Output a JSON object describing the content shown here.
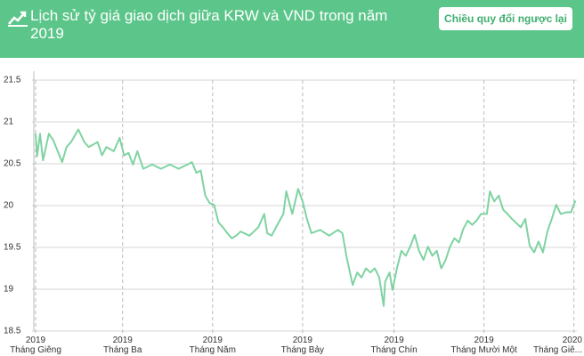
{
  "header": {
    "title": "Lịch sử tỷ giá giao dịch giữa KRW và VND trong năm 2019",
    "button": "Chiều quy đổi ngược lại"
  },
  "chart_data": {
    "type": "line",
    "color": "#7fd3a2",
    "grid": true,
    "x": [
      0,
      1,
      3,
      5,
      9,
      12,
      18,
      21,
      24,
      29,
      33,
      36,
      42,
      45,
      48,
      53,
      57,
      60,
      63,
      66,
      69,
      73,
      79,
      85,
      91,
      97,
      103,
      106,
      109,
      112,
      115,
      118,
      121,
      124,
      127,
      130,
      133,
      136,
      139,
      145,
      151,
      155,
      157,
      160,
      163,
      168,
      170,
      174,
      178,
      181,
      184,
      187,
      193,
      199,
      205,
      208,
      211,
      215,
      218,
      221,
      224,
      227,
      230,
      233,
      236,
      237,
      240,
      242,
      245,
      248,
      251,
      254,
      257,
      260,
      263,
      266,
      269,
      272,
      275,
      278,
      281,
      284,
      287,
      290,
      293,
      296,
      299,
      302,
      306,
      308,
      311,
      314,
      317,
      320,
      323,
      326,
      329,
      332,
      335,
      338,
      341,
      344,
      347,
      350,
      353,
      356,
      360,
      363,
      366
    ],
    "values": [
      20.86,
      20.59,
      20.86,
      20.54,
      20.86,
      20.78,
      20.52,
      20.7,
      20.76,
      20.91,
      20.76,
      20.7,
      20.76,
      20.6,
      20.7,
      20.65,
      20.81,
      20.6,
      20.63,
      20.49,
      20.65,
      20.44,
      20.49,
      20.44,
      20.49,
      20.44,
      20.49,
      20.52,
      20.39,
      20.42,
      20.12,
      20.03,
      20.01,
      19.8,
      19.74,
      19.67,
      19.61,
      19.64,
      19.69,
      19.64,
      19.74,
      19.9,
      19.67,
      19.64,
      19.74,
      19.9,
      20.17,
      19.9,
      20.2,
      20.05,
      19.84,
      19.67,
      19.71,
      19.64,
      19.71,
      19.67,
      19.37,
      19.05,
      19.2,
      19.14,
      19.25,
      19.2,
      19.25,
      19.14,
      18.8,
      19.09,
      19.2,
      18.99,
      19.25,
      19.46,
      19.4,
      19.51,
      19.65,
      19.46,
      19.35,
      19.51,
      19.4,
      19.46,
      19.25,
      19.35,
      19.51,
      19.61,
      19.56,
      19.72,
      19.82,
      19.77,
      19.82,
      19.9,
      19.9,
      20.17,
      20.05,
      20.12,
      19.95,
      19.9,
      19.84,
      19.79,
      19.74,
      19.84,
      19.52,
      19.44,
      19.57,
      19.44,
      19.69,
      19.84,
      20.01,
      19.9,
      19.92,
      19.92,
      20.06
    ],
    "xlim": [
      0,
      367
    ],
    "xticks": [
      {
        "value": 0,
        "label": "2019\nTháng Giêng"
      },
      {
        "value": 59,
        "label": "2019\nTháng Ba"
      },
      {
        "value": 120,
        "label": "2019\nTháng Năm"
      },
      {
        "value": 181,
        "label": "2019\nTháng Bảy"
      },
      {
        "value": 243,
        "label": "2019\nTháng Chín"
      },
      {
        "value": 304,
        "label": "2019\nTháng Mười Một"
      },
      {
        "value": 365,
        "label": "2020\nTháng Giê..."
      }
    ],
    "ylim": [
      18.5,
      21.5
    ],
    "yticks": [
      18.5,
      19,
      19.5,
      20,
      20.5,
      21,
      21.5
    ]
  }
}
